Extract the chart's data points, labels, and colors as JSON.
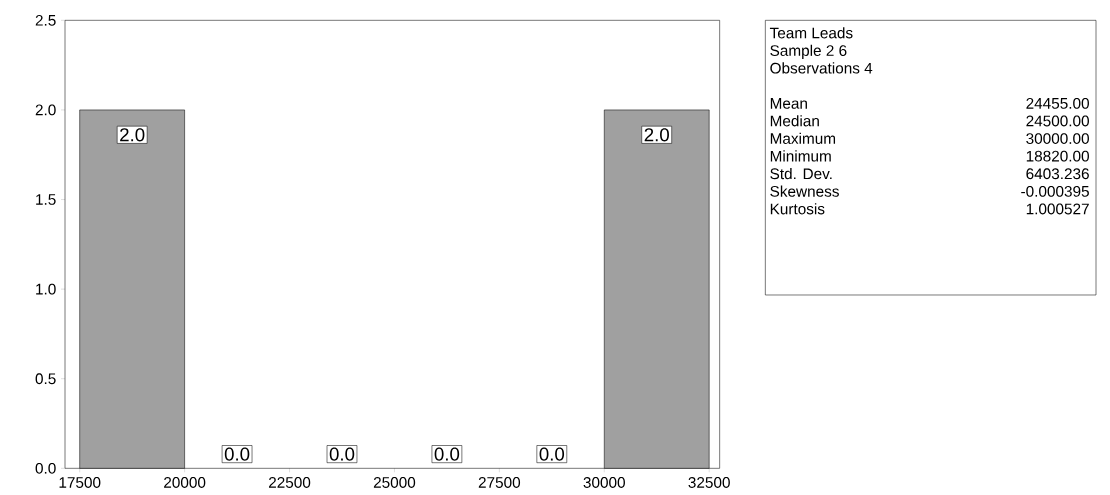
{
  "chart_data": {
    "type": "histogram",
    "bins": [
      17500,
      20000,
      22500,
      25000,
      27500,
      30000,
      32500
    ],
    "values": [
      2,
      0,
      0,
      0,
      0,
      2
    ],
    "value_labels": [
      "2.0",
      "0.0",
      "0.0",
      "0.0",
      "0.0",
      "2.0"
    ],
    "color": "#a0a0a0",
    "xlim": [
      17150,
      32750
    ],
    "xticks": [
      17500,
      20000,
      22500,
      25000,
      27500,
      30000,
      32500
    ],
    "ylim": [
      0,
      2.5
    ],
    "yticks": [
      {
        "value": 0,
        "label": "0.0"
      },
      {
        "value": 0.5,
        "label": "0.5"
      },
      {
        "value": 1,
        "label": "1.0"
      },
      {
        "value": 1.5,
        "label": "1.5"
      },
      {
        "value": 2,
        "label": "2.0"
      },
      {
        "value": 2.5,
        "label": "2.5"
      }
    ],
    "grid": false,
    "annotations": [
      "Team Leads",
      "Sample 2 6",
      "Observations 4",
      "Mean",
      "24455.00",
      "Median",
      "24500.00",
      "Maximum",
      "30000.00",
      "Minimum",
      "18820.00",
      "Std. Dev.",
      "6403.236",
      "Skewness",
      "-0.000395",
      "Kurtosis",
      "1.000527"
    ]
  }
}
